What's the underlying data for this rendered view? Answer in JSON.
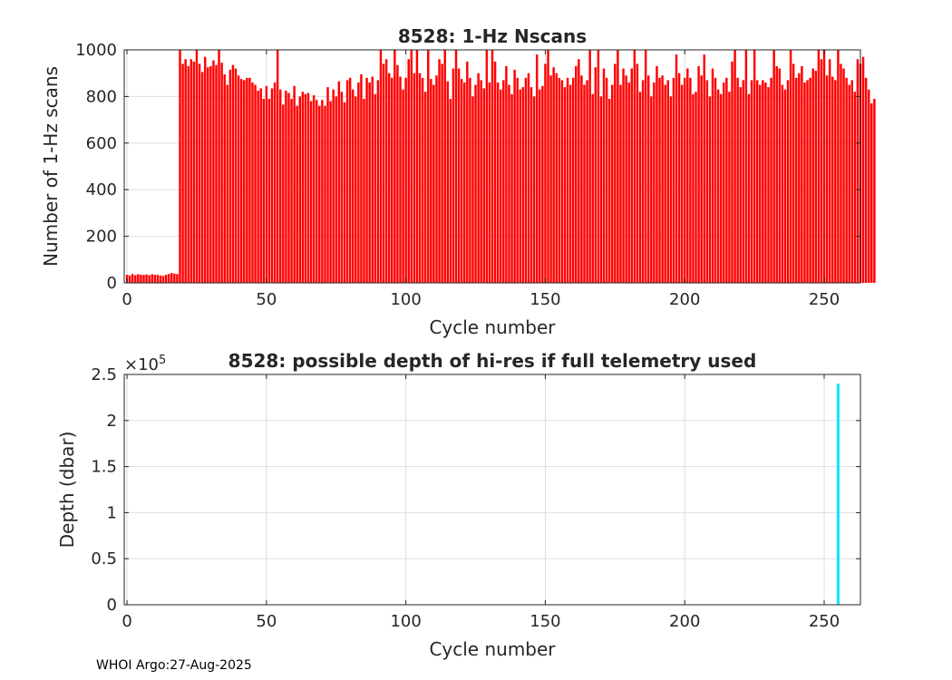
{
  "footer": "WHOI Argo:27-Aug-2025",
  "chart_data": [
    {
      "type": "bar",
      "title": "8528: 1-Hz Nscans",
      "xlabel": "Cycle number",
      "ylabel": "Number of 1-Hz scans",
      "xlim": [
        -1,
        263
      ],
      "ylim": [
        0,
        1000
      ],
      "xticks": [
        "0",
        "50",
        "100",
        "150",
        "200",
        "250"
      ],
      "yticks": [
        "0",
        "200",
        "400",
        "600",
        "800",
        "1000"
      ],
      "grid": true,
      "color": "#ff0000",
      "x_start": 0,
      "values": [
        35,
        32,
        38,
        33,
        37,
        35,
        34,
        36,
        33,
        37,
        35,
        34,
        32,
        30,
        35,
        38,
        42,
        40,
        38,
        1000,
        940,
        960,
        930,
        960,
        950,
        1000,
        940,
        905,
        970,
        925,
        930,
        955,
        935,
        1000,
        945,
        895,
        850,
        915,
        935,
        920,
        890,
        875,
        870,
        880,
        880,
        860,
        850,
        825,
        835,
        790,
        845,
        790,
        835,
        860,
        1000,
        830,
        765,
        825,
        815,
        790,
        845,
        760,
        800,
        820,
        810,
        815,
        780,
        805,
        785,
        760,
        785,
        760,
        840,
        780,
        830,
        800,
        865,
        820,
        775,
        870,
        880,
        830,
        800,
        860,
        895,
        790,
        880,
        860,
        885,
        810,
        870,
        1000,
        940,
        960,
        900,
        880,
        1000,
        935,
        885,
        830,
        880,
        960,
        1000,
        900,
        1000,
        900,
        880,
        820,
        1000,
        875,
        850,
        890,
        960,
        940,
        1000,
        865,
        790,
        920,
        1000,
        920,
        875,
        860,
        950,
        880,
        800,
        850,
        900,
        870,
        835,
        1000,
        860,
        1000,
        950,
        860,
        830,
        870,
        930,
        850,
        810,
        915,
        880,
        830,
        840,
        880,
        900,
        840,
        800,
        980,
        830,
        845,
        940,
        1000,
        890,
        925,
        900,
        880,
        870,
        840,
        880,
        850,
        880,
        930,
        960,
        890,
        850,
        870,
        1000,
        810,
        925,
        1000,
        800,
        920,
        880,
        790,
        850,
        940,
        1000,
        850,
        920,
        890,
        860,
        920,
        1000,
        940,
        820,
        870,
        1000,
        890,
        800,
        860,
        930,
        880,
        890,
        850,
        870,
        800,
        880,
        980,
        900,
        850,
        880,
        920,
        880,
        810,
        820,
        930,
        890,
        980,
        870,
        800,
        920,
        880,
        830,
        810,
        860,
        880,
        820,
        950,
        1000,
        880,
        840,
        870,
        1000,
        810,
        870,
        1000,
        870,
        850,
        870,
        860,
        840,
        880,
        1000,
        930,
        920,
        850,
        830,
        870,
        1000,
        940,
        880,
        900,
        930,
        860,
        870,
        880,
        920,
        910,
        1000,
        960,
        1000,
        890,
        960,
        885,
        870,
        1000,
        940,
        920,
        880,
        850,
        870,
        820,
        960,
        940,
        970,
        880,
        830,
        770,
        790
      ]
    },
    {
      "type": "line",
      "title": "8528: possible depth of hi-res if full telemetry used",
      "xlabel": "Cycle number",
      "ylabel": "Depth (dbar)",
      "exponent_label": "×10",
      "exponent": "5",
      "xlim": [
        -1,
        263
      ],
      "ylim": [
        0,
        250000
      ],
      "xticks": [
        "0",
        "50",
        "100",
        "150",
        "200",
        "250"
      ],
      "yticks": [
        "0",
        "0.5",
        "1",
        "1.5",
        "2",
        "2.5"
      ],
      "grid": true,
      "color": "#00e5ff",
      "series": [
        {
          "x": [
            255,
            255
          ],
          "y": [
            0,
            240000
          ]
        }
      ]
    }
  ]
}
